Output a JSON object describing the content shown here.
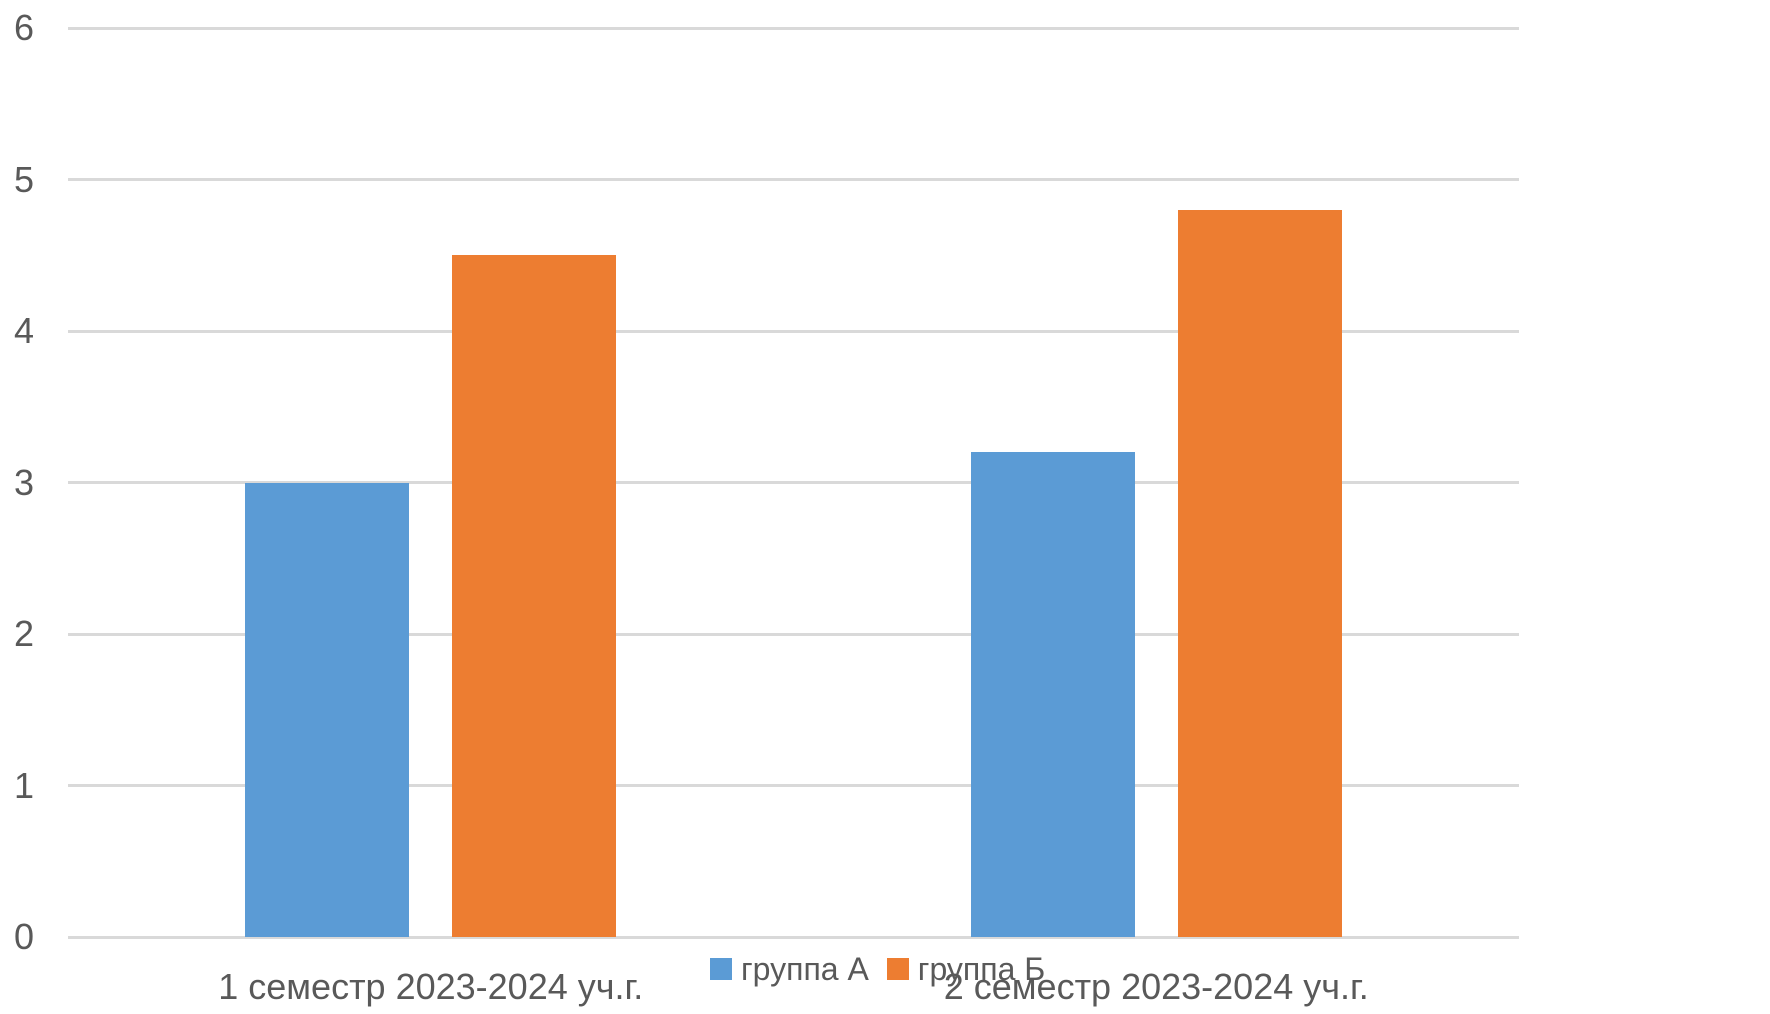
{
  "chart_data": {
    "type": "bar",
    "title": "",
    "categories": [
      "1 семестр 2023-2024 уч.г.",
      "2 семестр 2023-2024 уч.г."
    ],
    "series": [
      {
        "name": "группа А",
        "color": "#5B9BD5",
        "values": [
          3,
          3.2
        ]
      },
      {
        "name": "группа Б",
        "color": "#ED7D31",
        "values": [
          4.5,
          4.8
        ]
      }
    ],
    "xlabel": "",
    "ylabel": "",
    "ylim": [
      0,
      6
    ],
    "yticks": [
      0,
      1,
      2,
      3,
      4,
      5,
      6
    ],
    "grid": "horizontal",
    "legend_position": "bottom-center",
    "colors": {
      "gridline": "#D9D9D9",
      "text": "#595959",
      "background": "#FFFFFF"
    }
  }
}
